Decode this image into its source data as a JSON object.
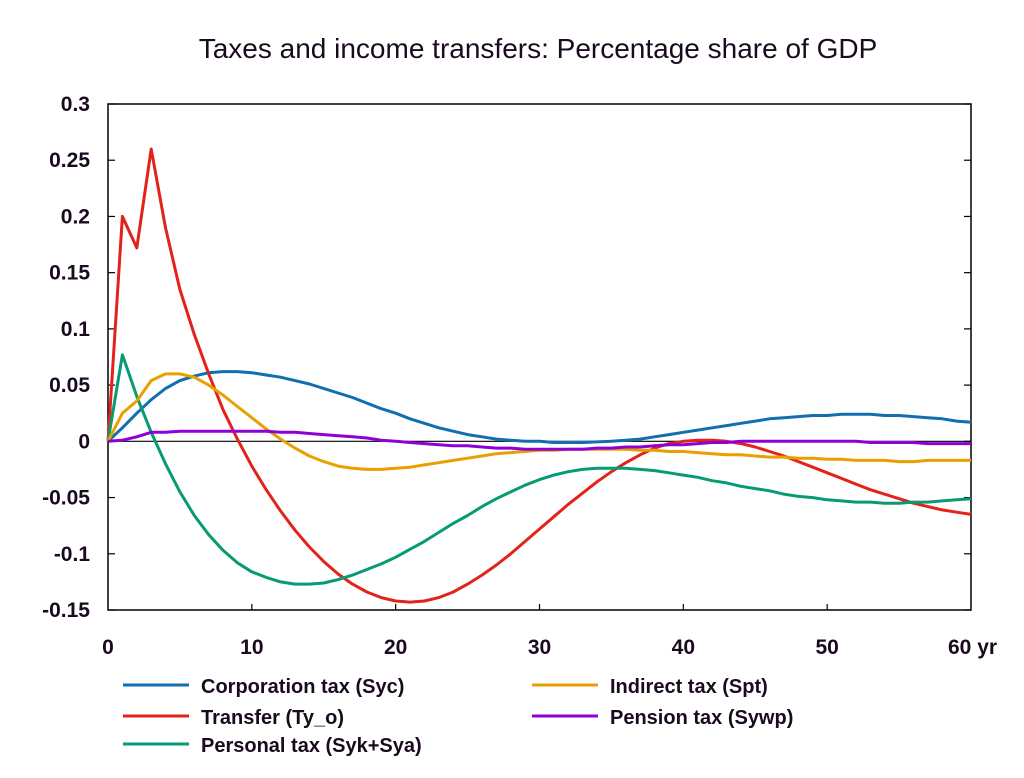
{
  "chart_data": {
    "type": "line",
    "title": "Taxes and income transfers: Percentage share of GDP",
    "xlabel": "",
    "ylabel": "",
    "x_unit_label": "yr",
    "xlim": [
      0,
      60
    ],
    "ylim": [
      -0.15,
      0.3
    ],
    "xticks": [
      0,
      10,
      20,
      30,
      40,
      50,
      60
    ],
    "xtick_labels": [
      "0",
      "10",
      "20",
      "30",
      "40",
      "50",
      "60 yr"
    ],
    "yticks": [
      0.3,
      0.25,
      0.2,
      0.15,
      0.1,
      0.05,
      0,
      -0.05,
      -0.1,
      -0.15
    ],
    "ytick_labels": [
      "0.3",
      "0.25",
      "0.2",
      "0.15",
      "0.1",
      "0.05",
      "0",
      "-0.05",
      "-0.1",
      "-0.15"
    ],
    "grid": false,
    "zero_line": true,
    "legend_position": "bottom",
    "x": [
      0,
      1,
      2,
      3,
      4,
      5,
      6,
      7,
      8,
      9,
      10,
      11,
      12,
      13,
      14,
      15,
      16,
      17,
      18,
      19,
      20,
      21,
      22,
      23,
      24,
      25,
      26,
      27,
      28,
      29,
      30,
      31,
      32,
      33,
      34,
      35,
      36,
      37,
      38,
      39,
      40,
      41,
      42,
      43,
      44,
      45,
      46,
      47,
      48,
      49,
      50,
      51,
      52,
      53,
      54,
      55,
      56,
      57,
      58,
      59,
      60
    ],
    "series": [
      {
        "name": "Corporation tax (Syc)",
        "color": "#0f6fb0",
        "values": [
          0,
          0.012,
          0.025,
          0.037,
          0.047,
          0.054,
          0.058,
          0.061,
          0.062,
          0.062,
          0.061,
          0.059,
          0.057,
          0.054,
          0.051,
          0.047,
          0.043,
          0.039,
          0.034,
          0.029,
          0.025,
          0.02,
          0.016,
          0.012,
          0.009,
          0.006,
          0.004,
          0.002,
          0.001,
          0.0,
          0.0,
          -0.001,
          -0.001,
          -0.001,
          -0.0005,
          0.0,
          0.001,
          0.002,
          0.004,
          0.006,
          0.008,
          0.01,
          0.012,
          0.014,
          0.016,
          0.018,
          0.02,
          0.021,
          0.022,
          0.023,
          0.023,
          0.024,
          0.024,
          0.024,
          0.023,
          0.023,
          0.022,
          0.021,
          0.02,
          0.018,
          0.017
        ]
      },
      {
        "name": "Transfer (Ty_o)",
        "color": "#e3221b",
        "values": [
          0,
          0.2,
          0.172,
          0.26,
          0.19,
          0.135,
          0.095,
          0.06,
          0.028,
          0.002,
          -0.022,
          -0.043,
          -0.062,
          -0.079,
          -0.094,
          -0.107,
          -0.118,
          -0.127,
          -0.134,
          -0.139,
          -0.142,
          -0.143,
          -0.142,
          -0.139,
          -0.134,
          -0.127,
          -0.119,
          -0.11,
          -0.1,
          -0.089,
          -0.078,
          -0.067,
          -0.056,
          -0.046,
          -0.036,
          -0.027,
          -0.019,
          -0.012,
          -0.006,
          -0.002,
          0.0,
          0.001,
          0.001,
          0.0,
          -0.002,
          -0.005,
          -0.009,
          -0.013,
          -0.018,
          -0.023,
          -0.028,
          -0.033,
          -0.038,
          -0.043,
          -0.047,
          -0.051,
          -0.055,
          -0.058,
          -0.061,
          -0.063,
          -0.065
        ]
      },
      {
        "name": "Personal tax (Syk+Sya)",
        "color": "#079a74",
        "values": [
          0,
          0.077,
          0.04,
          0.008,
          -0.02,
          -0.045,
          -0.066,
          -0.083,
          -0.097,
          -0.108,
          -0.116,
          -0.121,
          -0.125,
          -0.127,
          -0.127,
          -0.126,
          -0.123,
          -0.119,
          -0.114,
          -0.109,
          -0.103,
          -0.096,
          -0.089,
          -0.081,
          -0.073,
          -0.066,
          -0.058,
          -0.051,
          -0.045,
          -0.039,
          -0.034,
          -0.03,
          -0.027,
          -0.025,
          -0.024,
          -0.024,
          -0.024,
          -0.025,
          -0.026,
          -0.028,
          -0.03,
          -0.032,
          -0.035,
          -0.037,
          -0.04,
          -0.042,
          -0.044,
          -0.047,
          -0.049,
          -0.05,
          -0.052,
          -0.053,
          -0.054,
          -0.054,
          -0.055,
          -0.055,
          -0.054,
          -0.054,
          -0.053,
          -0.052,
          -0.051
        ]
      },
      {
        "name": "Indirect tax (Spt)",
        "color": "#e8a000",
        "values": [
          0,
          0.025,
          0.036,
          0.054,
          0.06,
          0.06,
          0.057,
          0.05,
          0.041,
          0.031,
          0.021,
          0.011,
          0.002,
          -0.006,
          -0.013,
          -0.018,
          -0.022,
          -0.024,
          -0.025,
          -0.025,
          -0.024,
          -0.023,
          -0.021,
          -0.019,
          -0.017,
          -0.015,
          -0.013,
          -0.011,
          -0.01,
          -0.009,
          -0.008,
          -0.008,
          -0.007,
          -0.007,
          -0.007,
          -0.007,
          -0.007,
          -0.008,
          -0.008,
          -0.009,
          -0.009,
          -0.01,
          -0.011,
          -0.012,
          -0.012,
          -0.013,
          -0.014,
          -0.014,
          -0.015,
          -0.015,
          -0.016,
          -0.016,
          -0.017,
          -0.017,
          -0.017,
          -0.018,
          -0.018,
          -0.017,
          -0.017,
          -0.017,
          -0.017
        ]
      },
      {
        "name": "Pension tax (Sywp)",
        "color": "#9000d6",
        "values": [
          0,
          0.001,
          0.004,
          0.008,
          0.008,
          0.009,
          0.009,
          0.009,
          0.009,
          0.009,
          0.009,
          0.009,
          0.008,
          0.008,
          0.007,
          0.006,
          0.005,
          0.004,
          0.003,
          0.001,
          0.0,
          -0.001,
          -0.002,
          -0.003,
          -0.004,
          -0.004,
          -0.005,
          -0.006,
          -0.006,
          -0.007,
          -0.007,
          -0.007,
          -0.007,
          -0.007,
          -0.006,
          -0.006,
          -0.005,
          -0.005,
          -0.004,
          -0.003,
          -0.003,
          -0.002,
          -0.001,
          -0.001,
          0.0,
          0.0,
          0.0,
          0.0,
          0.0,
          0.0,
          0.0,
          0.0,
          0.0,
          -0.001,
          -0.001,
          -0.001,
          -0.001,
          -0.002,
          -0.002,
          -0.002,
          -0.002
        ]
      }
    ]
  }
}
